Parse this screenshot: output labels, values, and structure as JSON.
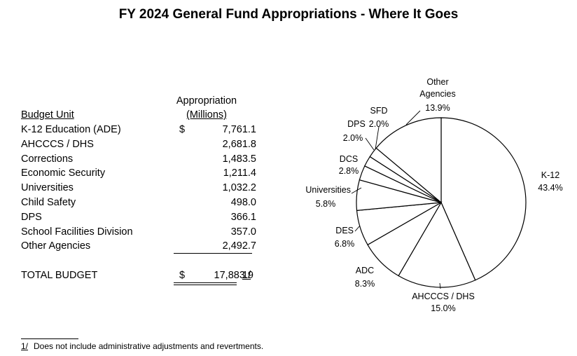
{
  "title": "FY 2024 General Fund Appropriations - Where It Goes",
  "table": {
    "header_unit": "Budget Unit",
    "header_approp_line1": "Appropriation",
    "header_approp_line2": "(Millions)",
    "currency_symbol": "$",
    "rows": [
      {
        "name": "K-12 Education (ADE)",
        "value": "7,761.1"
      },
      {
        "name": "AHCCCS / DHS",
        "value": "2,681.8"
      },
      {
        "name": "Corrections",
        "value": "1,483.5"
      },
      {
        "name": "Economic Security",
        "value": "1,211.4"
      },
      {
        "name": "Universities",
        "value": "1,032.2"
      },
      {
        "name": "Child Safety",
        "value": "498.0"
      },
      {
        "name": "DPS",
        "value": "366.1"
      },
      {
        "name": "School Facilities Division",
        "value": "357.0"
      },
      {
        "name": "Other Agencies",
        "value": "2,492.7"
      }
    ],
    "total_label": "TOTAL BUDGET",
    "total_value": "17,883.9",
    "total_note": "1/"
  },
  "footnote": {
    "mark": "1/",
    "text": "Does not include administrative adjustments and revertments."
  },
  "chart_data": {
    "type": "pie",
    "title": "FY 2024 General Fund Appropriations - Where It Goes",
    "unit": "percent",
    "slices": [
      {
        "label": "K-12",
        "pct_label": "43.4%",
        "value": 43.4
      },
      {
        "label": "AHCCCS / DHS",
        "pct_label": "15.0%",
        "value": 15.0
      },
      {
        "label": "ADC",
        "pct_label": "8.3%",
        "value": 8.3
      },
      {
        "label": "DES",
        "pct_label": "6.8%",
        "value": 6.8
      },
      {
        "label": "Universities",
        "pct_label": "5.8%",
        "value": 5.8
      },
      {
        "label": "DCS",
        "pct_label": "2.8%",
        "value": 2.8
      },
      {
        "label": "DPS",
        "pct_label": "2.0%",
        "value": 2.0
      },
      {
        "label": "SFD",
        "pct_label": "2.0%",
        "value": 2.0
      },
      {
        "label": "Other Agencies",
        "pct_label": "13.9%",
        "value": 13.9
      }
    ]
  }
}
